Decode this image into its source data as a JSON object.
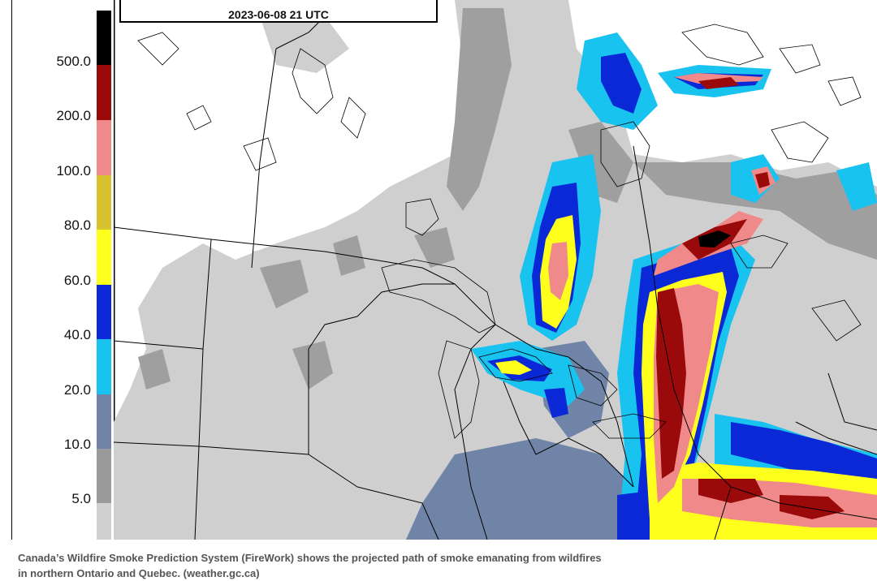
{
  "legend": {
    "ticks": [
      "500.0",
      "200.0",
      "100.0",
      "80.0",
      "60.0",
      "40.0",
      "20.0",
      "10.0",
      "5.0"
    ],
    "colors": [
      "#000000",
      "#9a0a0a",
      "#f08a8a",
      "#d9c230",
      "#ffff1e",
      "#0a28d6",
      "#19c3f0",
      "#6f84a6",
      "#9a9a9a",
      "#d0d0d0"
    ]
  },
  "map": {
    "valid_time": "2023-06-08 21 UTC",
    "land_color": "#ffffff",
    "border_color": "#000000"
  },
  "caption": {
    "line1": "Canada’s Wildfire Smoke Prediction System (FireWork) shows the projected path of smoke emanating from wildfires",
    "line2": "in northern Ontario and Quebec. (weather.gc.ca)"
  }
}
